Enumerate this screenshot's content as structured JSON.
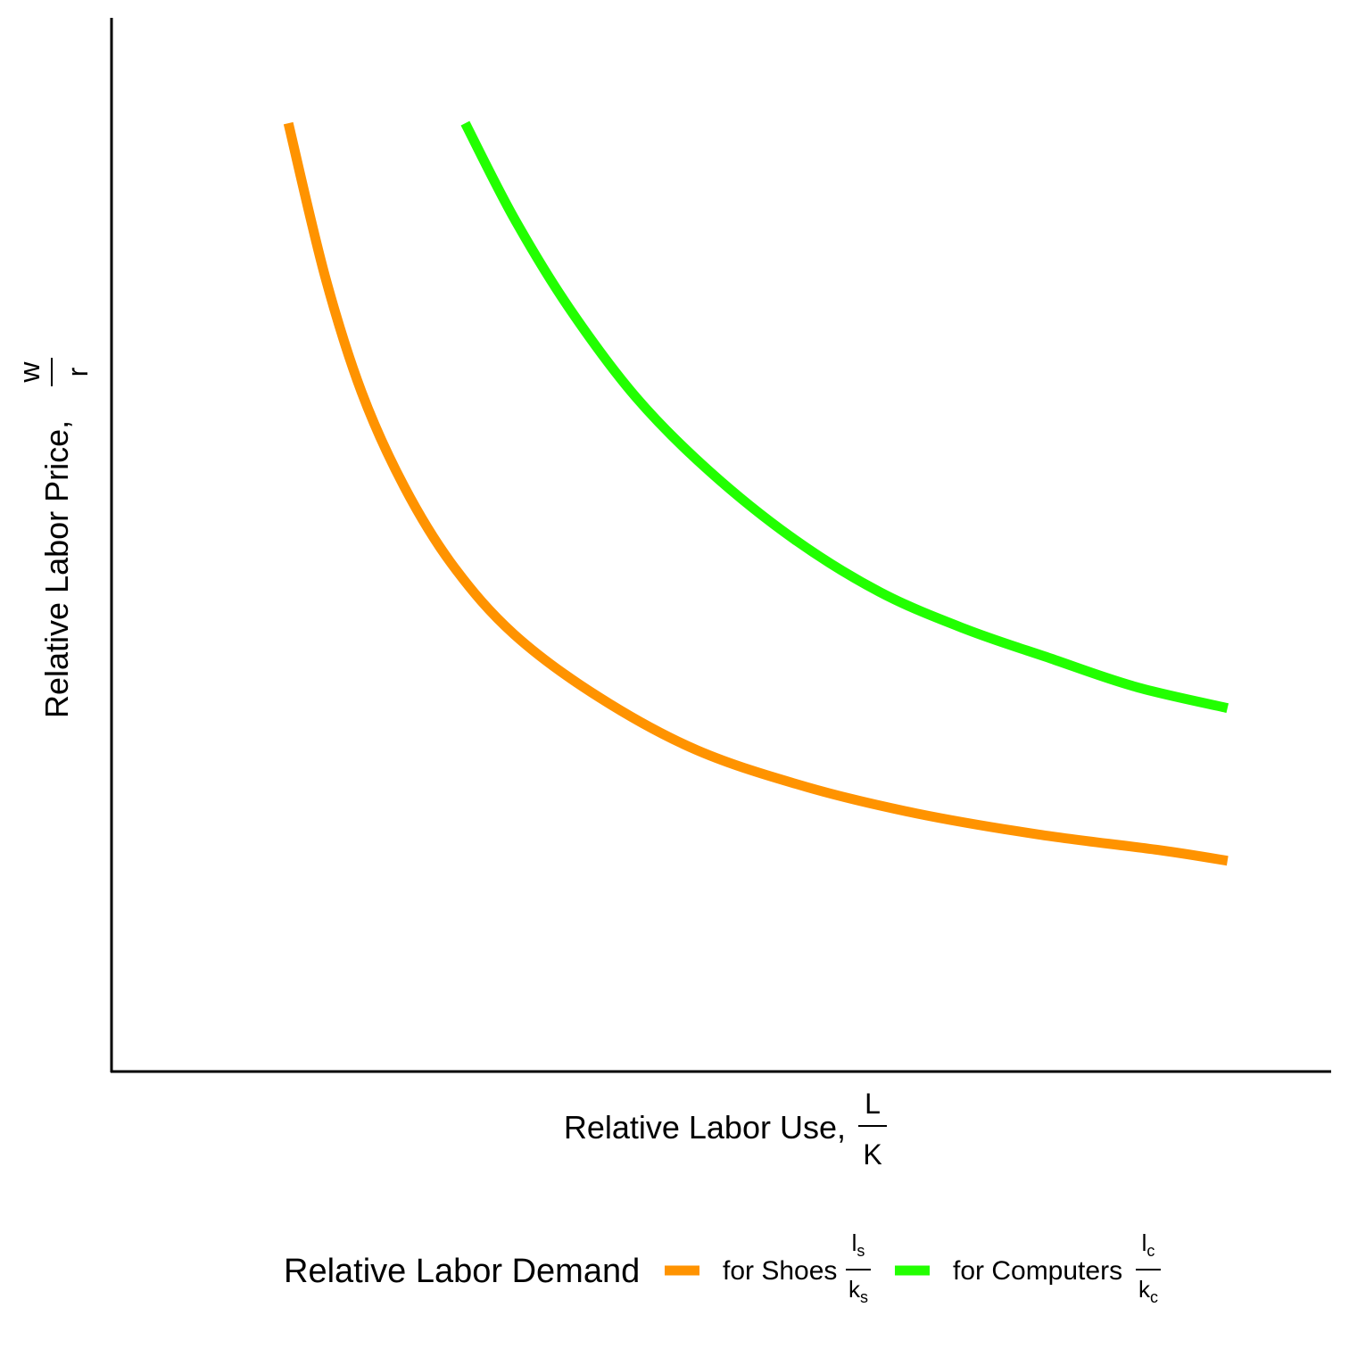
{
  "chart_data": {
    "type": "line",
    "x_label": {
      "text": "Relative Labor Use,",
      "frac_num": "L",
      "frac_den": "K"
    },
    "y_label": {
      "text": "Relative Labor Price,",
      "frac_num": "w",
      "frac_den": "r"
    },
    "x_ticks": [],
    "y_ticks": [],
    "grid": false,
    "xlim": [
      0,
      10
    ],
    "ylim": [
      0,
      10
    ],
    "legend": {
      "position": "bottom",
      "title": "Relative Labor Demand",
      "entries": [
        {
          "label": "for Shoes",
          "num": "l",
          "num_sub": "s",
          "den": "k",
          "den_sub": "s",
          "color": "#FF9300"
        },
        {
          "label": "for Computers",
          "num": "l",
          "num_sub": "c",
          "den": "k",
          "den_sub": "c",
          "color": "#22FF00"
        }
      ]
    },
    "series": [
      {
        "name": "for Shoes",
        "color": "#FF9300",
        "points": [
          [
            1.45,
            9.0
          ],
          [
            1.75,
            7.55
          ],
          [
            2.05,
            6.45
          ],
          [
            2.4,
            5.55
          ],
          [
            2.8,
            4.8
          ],
          [
            3.3,
            4.15
          ],
          [
            4.0,
            3.55
          ],
          [
            4.8,
            3.05
          ],
          [
            5.7,
            2.7
          ],
          [
            6.6,
            2.45
          ],
          [
            7.6,
            2.25
          ],
          [
            8.6,
            2.1
          ],
          [
            9.15,
            2.0
          ]
        ]
      },
      {
        "name": "for Computers",
        "color": "#22FF00",
        "points": [
          [
            2.9,
            9.0
          ],
          [
            3.3,
            8.1
          ],
          [
            3.75,
            7.25
          ],
          [
            4.3,
            6.4
          ],
          [
            4.9,
            5.7
          ],
          [
            5.6,
            5.05
          ],
          [
            6.3,
            4.55
          ],
          [
            7.0,
            4.2
          ],
          [
            7.7,
            3.92
          ],
          [
            8.4,
            3.65
          ],
          [
            9.15,
            3.45
          ]
        ]
      }
    ]
  }
}
